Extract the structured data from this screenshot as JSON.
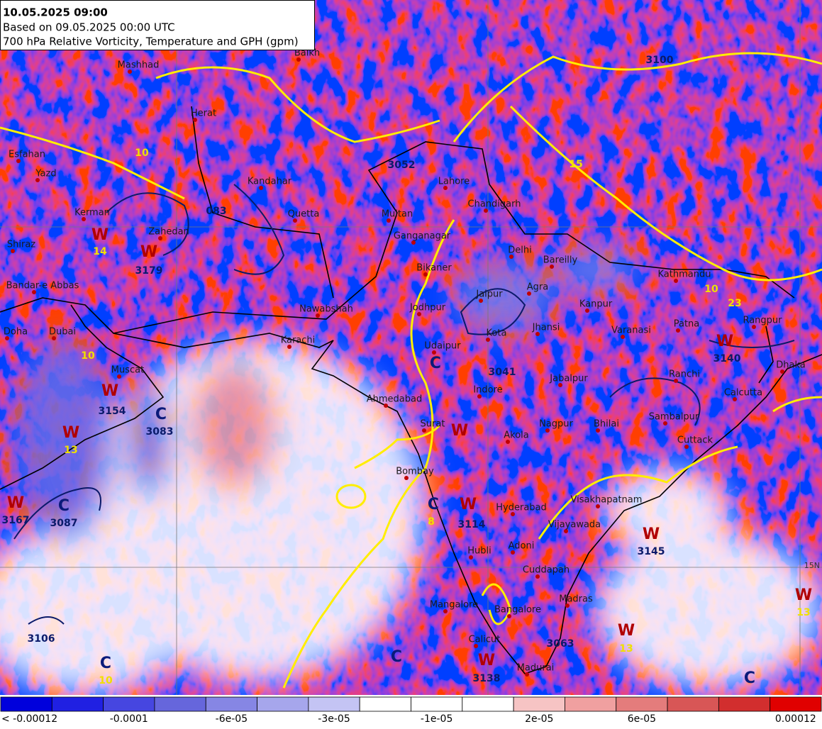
{
  "header": {
    "line1": "10.05.2025 09:00",
    "line2": "Based on 09.05.2025 00:00 UTC",
    "line3": "700 hPa Relative Vorticity, Temperature and GPH (gpm)"
  },
  "colorbar": {
    "colors": [
      "#0000dc",
      "#2020e2",
      "#4646e0",
      "#6666dc",
      "#8686e4",
      "#a6a6ec",
      "#c4c4f4",
      "#ffffff",
      "#ffffff",
      "#ffffff",
      "#f6c4c4",
      "#f0a0a0",
      "#e47c7c",
      "#d85656",
      "#d22e2e",
      "#e00000"
    ],
    "labels": [
      "< -0.00012",
      "-0.0001",
      "-6e-05",
      "-3e-05",
      "-1e-05",
      "2e-05",
      "6e-05",
      "0.00012"
    ]
  },
  "cities": [
    "Mashhad",
    "Balkh",
    "Herat",
    "Kandahar",
    "Quetta",
    "Zahedan",
    "Kerman",
    "Esfahan",
    "Yazd",
    "Shiraz",
    "Bandar-e Abbas",
    "Doha",
    "Dubai",
    "Muscat",
    "Karachi",
    "Nawabshah",
    "Multan",
    "Lahore",
    "Chandigarh",
    "Ganganagar",
    "Bikaner",
    "Delhi",
    "Bareilly",
    "Agra",
    "Jaipur",
    "Kanpur",
    "Jodhpur",
    "Udaipur",
    "Kota",
    "Jhansi",
    "Varanasi",
    "Patna",
    "Kathmandu",
    "Rangpur",
    "Dhaka",
    "Indore",
    "Jabalpur",
    "Ranchi",
    "Calcutta",
    "Sambalpur",
    "Nagpur",
    "Bhilai",
    "Cuttack",
    "Akola",
    "Ahmedabad",
    "Surat",
    "Bombay",
    "Hyderabad",
    "Visakhapatnam",
    "Vijayawada",
    "Adoni",
    "Hubli",
    "Cuddapah",
    "Mangalore",
    "Bangalore",
    "Madras",
    "Calicut",
    "Madurai"
  ],
  "systems": [
    "W",
    "W",
    "W",
    "C",
    "W",
    "W",
    "C",
    "C",
    "W",
    "W",
    "W",
    "W",
    "W",
    "C",
    "C",
    "W",
    "C",
    "W",
    "C"
  ],
  "gph_labels": [
    "3179",
    "3154",
    "3083",
    "3167",
    "3087",
    "3140",
    "3145",
    "3138",
    "3114",
    "3041",
    "3106",
    "3063",
    "3052",
    "3100",
    "083"
  ],
  "temperature_labels": [
    "14",
    "13",
    "10",
    "13",
    "13",
    "10",
    "15",
    "10",
    "23",
    "8",
    "10"
  ],
  "grid_labels": [
    "15N"
  ]
}
